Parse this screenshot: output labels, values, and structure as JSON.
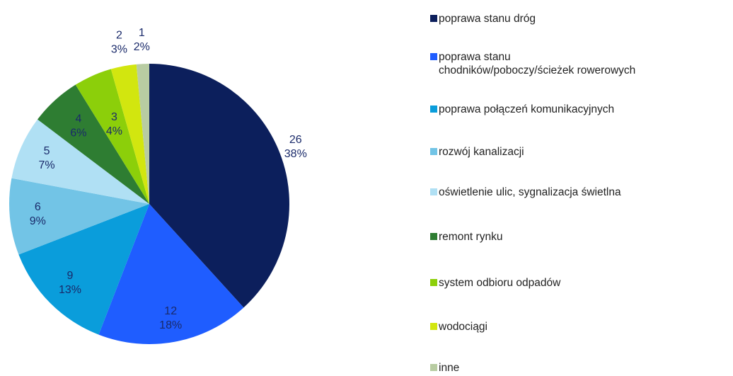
{
  "chart_data": {
    "type": "pie",
    "categories": [
      "poprawa stanu dróg",
      "poprawa stanu\nchodników/poboczy/ścieżek rowerowych",
      "poprawa połączeń komunikacyjnych",
      "rozwój kanalizacji",
      "oświetlenie ulic, sygnalizacja świetlna",
      "remont rynku",
      "system odbioru odpadów",
      "wodociągi",
      "inne"
    ],
    "values": [
      26,
      12,
      9,
      6,
      5,
      4,
      3,
      2,
      1
    ],
    "percent_labels": [
      "38%",
      "18%",
      "13%",
      "9%",
      "7%",
      "6%",
      "4%",
      "3%",
      "2%"
    ],
    "colors": [
      "#0c1f5c",
      "#1f5dff",
      "#0a9ddb",
      "#72c4e6",
      "#b0e0f4",
      "#2e7d32",
      "#8ccf0a",
      "#d2e60f",
      "#b8cca2"
    ],
    "legend": "right"
  }
}
